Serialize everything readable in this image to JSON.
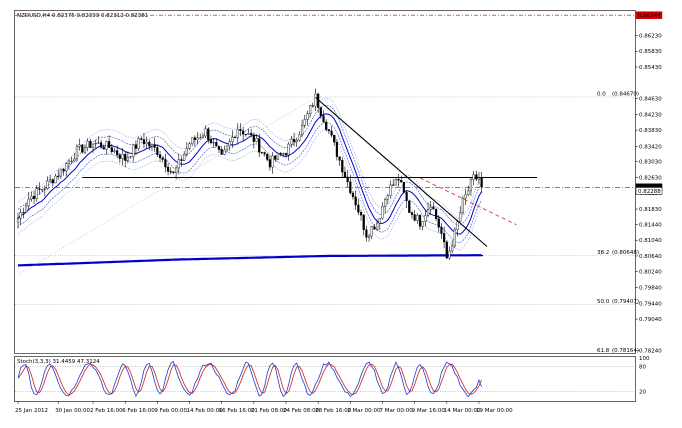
{
  "chart_data": {
    "type": "line",
    "header": "NZDUSD,H4 0.82375 0.82393 0.82312 0.82381",
    "colors": {
      "price": "#000000",
      "ma": "#0000cc",
      "envelope": "#3355cc",
      "long_ma": "#0000cc",
      "trendline": "#000000",
      "dashed_trend": "#d03030",
      "red_level": "#cc0000",
      "stoch_main": "#1a3fd0",
      "stoch_signal": "#d02020",
      "fib_line": "#999999"
    },
    "price_axis": {
      "ylim": [
        0.7818,
        0.8685
      ],
      "ticks": [
        "0.86230",
        "0.85830",
        "0.85430",
        "0.84630",
        "0.84230",
        "0.83830",
        "0.83420",
        "0.83030",
        "0.82630",
        "0.82230",
        "0.81830",
        "0.81440",
        "0.81040",
        "0.80640",
        "0.80240",
        "0.79840",
        "0.79440",
        "0.79040",
        "0.78240"
      ],
      "tick_values": [
        0.8623,
        0.8583,
        0.8543,
        0.8463,
        0.8423,
        0.8383,
        0.8342,
        0.8303,
        0.8263,
        0.8223,
        0.8183,
        0.8144,
        0.8104,
        0.8064,
        0.8024,
        0.7984,
        0.7944,
        0.7904,
        0.7824
      ],
      "current_label": "0.82381",
      "current_value": 0.82381,
      "bid_label": "0.82288",
      "bid_value": 0.82288,
      "red_label": "0.86744",
      "red_value": 0.86744
    },
    "x_axis": {
      "n_bars": 174,
      "labels": [
        "25 Jan 2012",
        "30 Jan 00:00",
        "2 Feb 16:00",
        "6 Feb 16:00",
        "9 Feb 00:00",
        "14 Feb 00:00",
        "16 Feb 16:00",
        "21 Feb 08:00",
        "24 Feb 08:00",
        "28 Feb 16:00",
        "2 Mar 00:00",
        "7 Mar 00:00",
        "9 Mar 16:00",
        "14 Mar 00:00",
        "19 Mar 00:00"
      ],
      "label_bars": [
        0,
        15,
        28,
        40,
        52,
        64,
        76,
        88,
        100,
        112,
        124,
        136,
        148,
        160,
        172
      ]
    },
    "fibonacci": [
      {
        "label": "0.0",
        "value_label": "(0.84670)",
        "value": 0.8467
      },
      {
        "label": "38.2",
        "value_label": "(0.80648)",
        "value": 0.80648
      },
      {
        "label": "50.0",
        "value_label": "(0.79407)",
        "value": 0.79407
      },
      {
        "label": "61.8",
        "value_label": "(0.78164)",
        "value": 0.78164
      }
    ],
    "horizontal_lines": [
      {
        "name": "resistance",
        "value": 0.8263
      },
      {
        "name": "support",
        "value": 0.8065
      }
    ],
    "trendlines": [
      {
        "name": "downtrend",
        "bar1": 111,
        "value1": 0.8466,
        "bar2": 175,
        "value2": 0.8088
      },
      {
        "name": "dashed-downtrend",
        "bar1": 150,
        "value1": 0.8262,
        "bar2": 186,
        "value2": 0.8143
      },
      {
        "name": "retracement-dotted",
        "bar1": 0,
        "value1": 0.8017,
        "bar2": 111,
        "value2": 0.8466
      }
    ],
    "price_anchors": [
      [
        0,
        0.816
      ],
      [
        4,
        0.821
      ],
      [
        10,
        0.824
      ],
      [
        16,
        0.828
      ],
      [
        22,
        0.833
      ],
      [
        28,
        0.835
      ],
      [
        34,
        0.834
      ],
      [
        40,
        0.831
      ],
      [
        46,
        0.836
      ],
      [
        52,
        0.833
      ],
      [
        58,
        0.827
      ],
      [
        64,
        0.835
      ],
      [
        70,
        0.838
      ],
      [
        76,
        0.831
      ],
      [
        82,
        0.839
      ],
      [
        88,
        0.836
      ],
      [
        94,
        0.83
      ],
      [
        100,
        0.833
      ],
      [
        106,
        0.839
      ],
      [
        111,
        0.8466
      ],
      [
        116,
        0.838
      ],
      [
        122,
        0.827
      ],
      [
        126,
        0.82
      ],
      [
        130,
        0.812
      ],
      [
        134,
        0.815
      ],
      [
        138,
        0.823
      ],
      [
        142,
        0.826
      ],
      [
        146,
        0.818
      ],
      [
        150,
        0.815
      ],
      [
        154,
        0.82
      ],
      [
        158,
        0.812
      ],
      [
        160,
        0.8058
      ],
      [
        163,
        0.812
      ],
      [
        166,
        0.82
      ],
      [
        170,
        0.826
      ],
      [
        172,
        0.8262
      ],
      [
        174,
        0.8238
      ]
    ],
    "long_ma": [
      [
        0,
        0.804
      ],
      [
        60,
        0.8055
      ],
      [
        115,
        0.8064
      ],
      [
        174,
        0.8066
      ]
    ],
    "stochastic": {
      "label": "Stoch(3,3,3) 31.4459 47.3124",
      "ylim": [
        0,
        100
      ],
      "levels": [
        80,
        20
      ],
      "level_labels": [
        "100",
        "80",
        "20"
      ],
      "main_final": 31.4459,
      "signal_final": 47.3124
    }
  }
}
